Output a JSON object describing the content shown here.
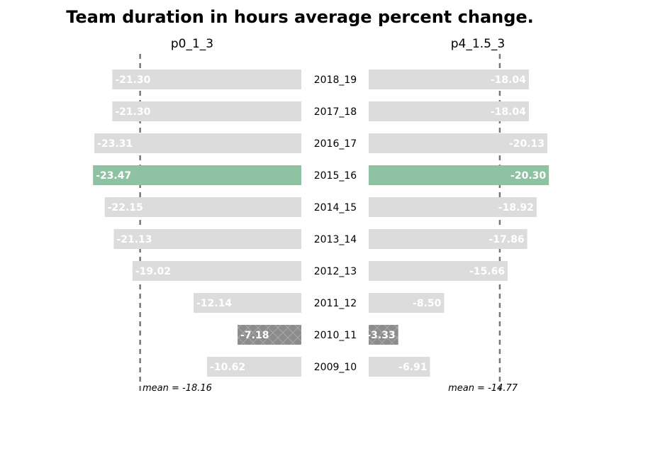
{
  "title": "Team duration in hours average percent change.",
  "chart_data": {
    "type": "bar",
    "orientation": "horizontal",
    "categories": [
      "2018_19",
      "2017_18",
      "2016_17",
      "2015_16",
      "2014_15",
      "2013_14",
      "2012_13",
      "2011_12",
      "2010_11",
      "2009_10"
    ],
    "panels": [
      {
        "name": "p0_1_3",
        "values": [
          -21.3,
          -21.3,
          -23.31,
          -23.47,
          -22.15,
          -21.13,
          -19.02,
          -12.14,
          -7.18,
          -10.62
        ],
        "labels": [
          "-21.30",
          "-21.30",
          "-23.31",
          "-23.47",
          "-22.15",
          "-21.13",
          "-19.02",
          "-12.14",
          "-7.18",
          "-10.62"
        ],
        "mean": -18.16,
        "mean_label": "mean = -18.16",
        "highlight_max": 3,
        "highlight_min": 8
      },
      {
        "name": "p4_1.5_3",
        "values": [
          -18.04,
          -18.04,
          -20.13,
          -20.3,
          -18.92,
          -17.86,
          -15.66,
          -8.5,
          -3.33,
          -6.91
        ],
        "labels": [
          "-18.04",
          "-18.04",
          "-20.13",
          "-20.30",
          "-18.92",
          "-17.86",
          "-15.66",
          "-8.50",
          "-3.33",
          "-6.91"
        ],
        "mean": -14.77,
        "mean_label": "mean = -14.77",
        "highlight_max": 3,
        "highlight_min": 8
      }
    ],
    "colors": {
      "default": "#dcdcdc",
      "highlight_max": "#8fc2a3",
      "highlight_min": "#8c8c8c",
      "mean_line": "#777777"
    },
    "grid": false,
    "legend": "none"
  }
}
